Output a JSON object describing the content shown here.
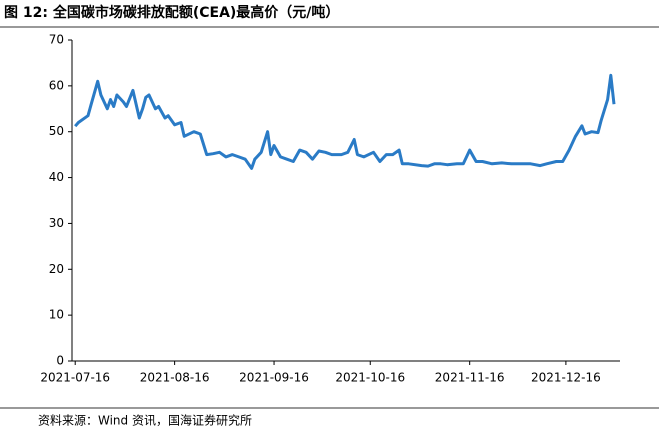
{
  "chart_data": {
    "type": "line",
    "title": "图 12:  全国碳市场碳排放配额(CEA)最高价（元/吨）",
    "source": "资料来源：Wind 资讯，国海证券研究所",
    "xlim": [
      "2021-07-15",
      "2021-12-31"
    ],
    "xticks": [
      "2021-07-16",
      "2021-08-16",
      "2021-09-16",
      "2021-10-16",
      "2021-11-16",
      "2021-12-16"
    ],
    "ylim": [
      0,
      70
    ],
    "yticks": [
      0,
      10,
      20,
      30,
      40,
      50,
      60,
      70
    ],
    "grid": false,
    "x": [
      "2021-07-16",
      "2021-07-17",
      "2021-07-20",
      "2021-07-21",
      "2021-07-23",
      "2021-07-24",
      "2021-07-26",
      "2021-07-27",
      "2021-07-28",
      "2021-07-29",
      "2021-07-31",
      "2021-08-01",
      "2021-08-03",
      "2021-08-05",
      "2021-08-06",
      "2021-08-07",
      "2021-08-08",
      "2021-08-10",
      "2021-08-11",
      "2021-08-13",
      "2021-08-14",
      "2021-08-16",
      "2021-08-18",
      "2021-08-19",
      "2021-08-22",
      "2021-08-24",
      "2021-08-26",
      "2021-08-28",
      "2021-08-30",
      "2021-09-01",
      "2021-09-03",
      "2021-09-05",
      "2021-09-07",
      "2021-09-09",
      "2021-09-10",
      "2021-09-12",
      "2021-09-14",
      "2021-09-15",
      "2021-09-16",
      "2021-09-18",
      "2021-09-20",
      "2021-09-22",
      "2021-09-24",
      "2021-09-26",
      "2021-09-28",
      "2021-09-30",
      "2021-10-02",
      "2021-10-04",
      "2021-10-07",
      "2021-10-09",
      "2021-10-11",
      "2021-10-12",
      "2021-10-14",
      "2021-10-17",
      "2021-10-19",
      "2021-10-21",
      "2021-10-23",
      "2021-10-25",
      "2021-10-26",
      "2021-10-28",
      "2021-11-01",
      "2021-11-03",
      "2021-11-05",
      "2021-11-07",
      "2021-11-09",
      "2021-11-12",
      "2021-11-14",
      "2021-11-16",
      "2021-11-18",
      "2021-11-20",
      "2021-11-23",
      "2021-11-26",
      "2021-11-29",
      "2021-12-02",
      "2021-12-05",
      "2021-12-08",
      "2021-12-10",
      "2021-12-13",
      "2021-12-15",
      "2021-12-17",
      "2021-12-19",
      "2021-12-21",
      "2021-12-22",
      "2021-12-24",
      "2021-12-26",
      "2021-12-27",
      "2021-12-29",
      "2021-12-30",
      "2021-12-31"
    ],
    "series": [
      {
        "color": "#2a7bc6",
        "values": [
          51.2,
          52,
          53.5,
          56,
          61,
          58,
          55,
          57,
          55.5,
          58,
          56.5,
          55.5,
          59,
          53,
          55,
          57.5,
          58,
          55,
          55.5,
          53,
          53.5,
          51.5,
          52,
          49,
          50,
          49.5,
          45,
          45.2,
          45.5,
          44.5,
          45,
          44.5,
          44,
          42,
          44,
          45.5,
          50,
          45,
          47,
          44.5,
          44,
          43.5,
          46,
          45.5,
          44,
          45.8,
          45.5,
          45,
          45,
          45.5,
          48.3,
          45,
          44.5,
          45.5,
          43.5,
          45,
          45,
          46,
          43,
          43,
          42.6,
          42.5,
          43,
          43,
          42.8,
          43,
          43,
          46,
          43.5,
          43.5,
          43,
          43.2,
          43,
          43,
          43,
          42.6,
          43,
          43.5,
          43.5,
          46,
          49,
          51.3,
          49.5,
          50,
          49.8,
          52.5,
          57,
          62.3,
          56
        ]
      }
    ]
  }
}
